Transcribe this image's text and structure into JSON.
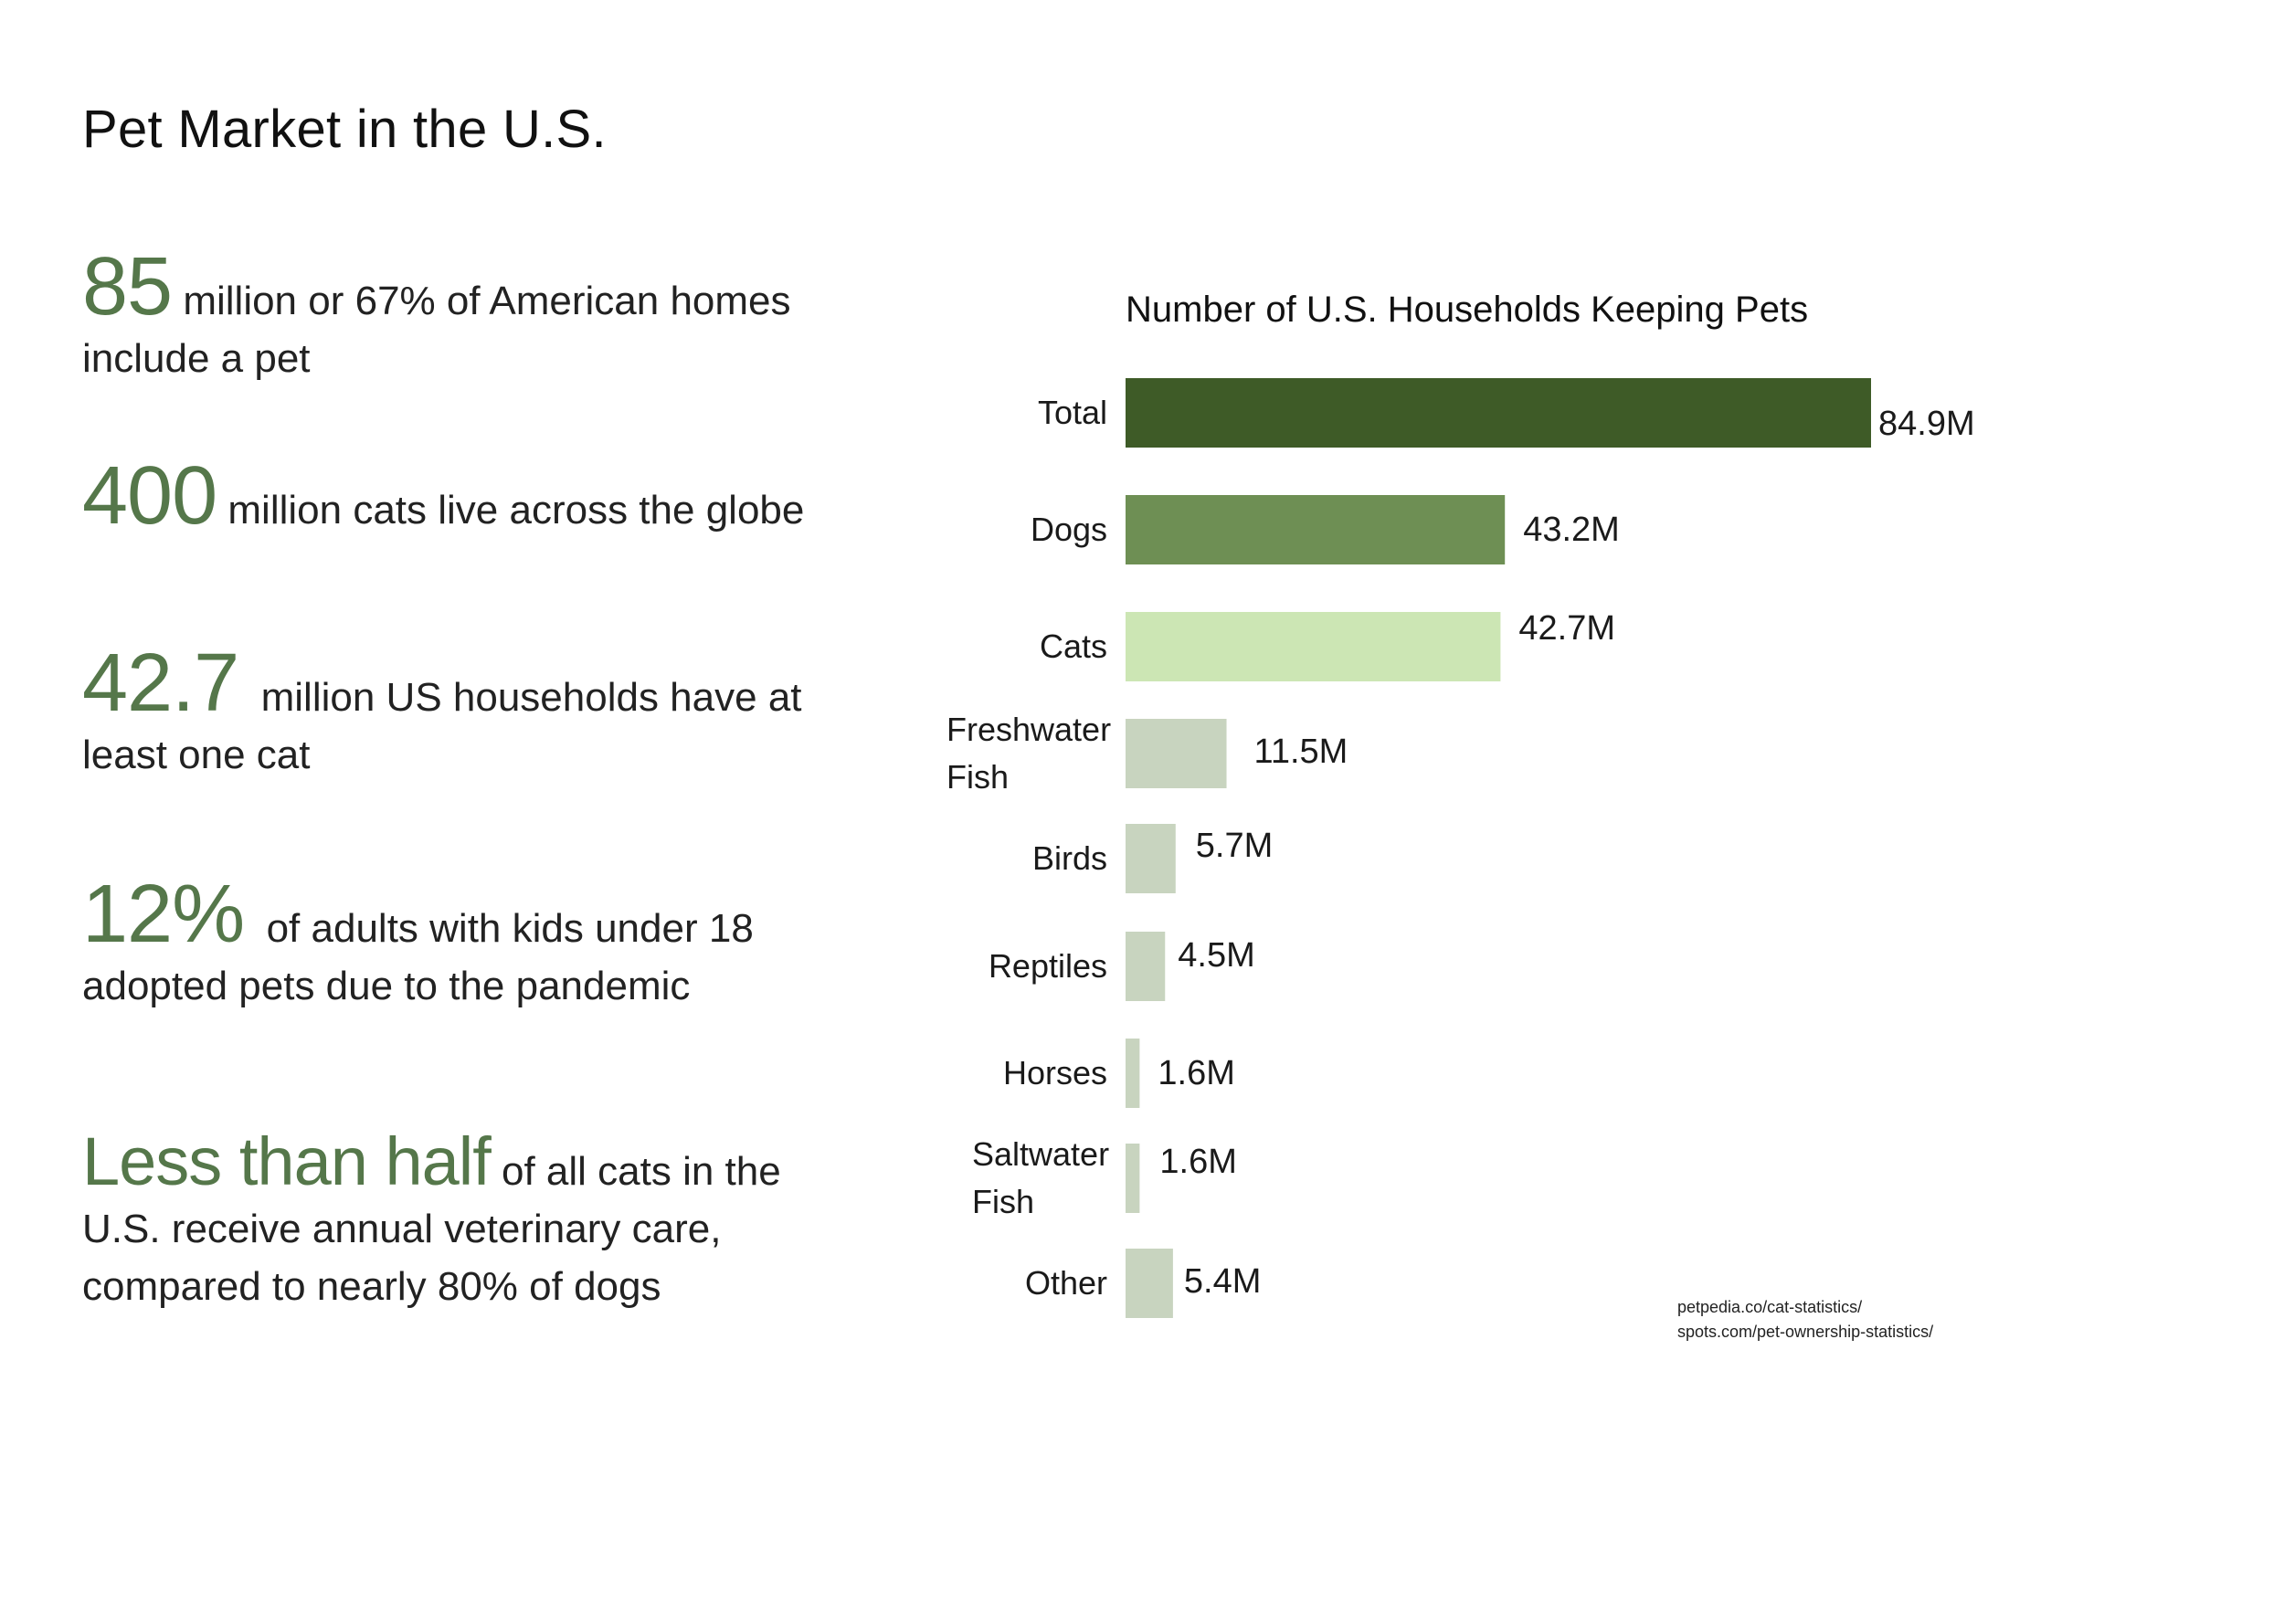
{
  "page": {
    "title": "Pet Market in the U.S."
  },
  "stats": [
    {
      "big": "85",
      "text": " million or 67% of American homes include a pet"
    },
    {
      "big": "400",
      "text": " million cats live across the globe"
    },
    {
      "big": "42.7",
      "text": "  million US households have at least one cat"
    },
    {
      "big": "12%",
      "text": "  of adults with kids under 18 adopted pets due to the pandemic"
    },
    {
      "big": "Less than half",
      "text": " of all cats in the U.S. receive annual veterinary care, compared to nearly 80% of dogs"
    }
  ],
  "sources": [
    "petpedia.co/cat-statistics/",
    "spots.com/pet-ownership-statistics/"
  ],
  "colors": {
    "accent": "#55774a",
    "total_bar": "#3e5b27",
    "dogs_bar": "#6e8f54",
    "cats_bar": "#cce6b4",
    "other_bar": "#c8d4bf"
  },
  "chart_data": {
    "type": "bar",
    "orientation": "horizontal",
    "title": "Number of U.S. Households Keeping Pets",
    "xlabel": "",
    "ylabel": "",
    "unit": "M",
    "xlim": [
      0,
      84.9
    ],
    "grid": false,
    "categories": [
      "Total",
      "Dogs",
      "Cats",
      "Freshwater Fish",
      "Birds",
      "Reptiles",
      "Horses",
      "Saltwater Fish",
      "Other"
    ],
    "values": [
      84.9,
      43.2,
      42.7,
      11.5,
      5.7,
      4.5,
      1.6,
      1.6,
      5.4
    ],
    "labels": [
      "84.9M",
      "43.2M",
      "42.7M",
      "11.5M",
      "5.7M",
      "4.5M",
      "1.6M",
      "1.6M",
      "5.4M"
    ],
    "bar_colors": [
      "#3e5b27",
      "#6e8f54",
      "#cce6b4",
      "#c8d4bf",
      "#c8d4bf",
      "#c8d4bf",
      "#c8d4bf",
      "#c8d4bf",
      "#c8d4bf"
    ]
  }
}
